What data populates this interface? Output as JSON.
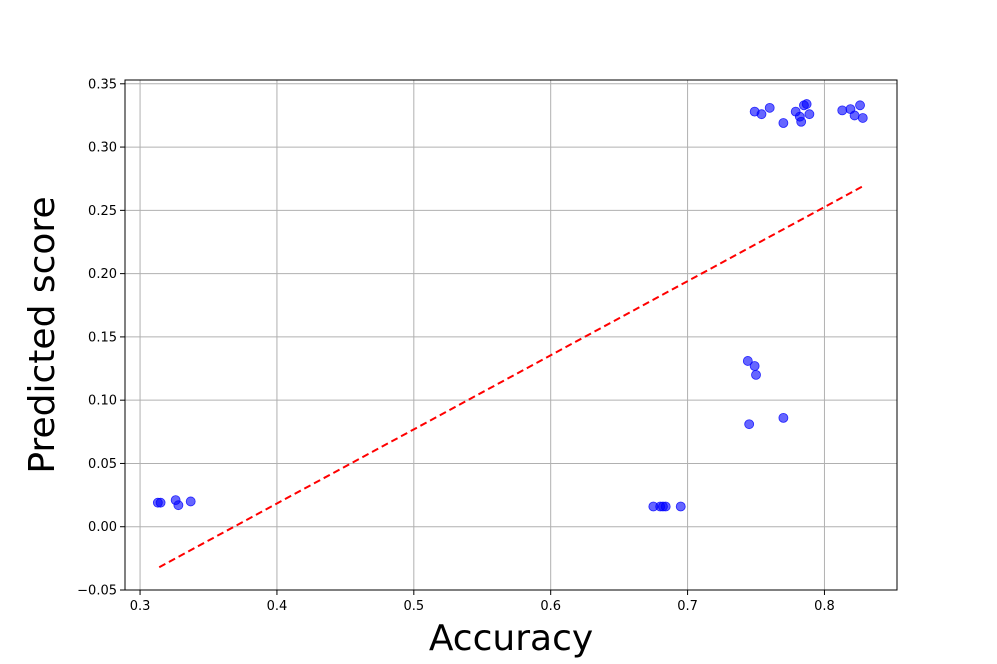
{
  "chart_data": {
    "type": "scatter",
    "title": "",
    "xlabel": "Accuracy",
    "ylabel": "Predicted score",
    "xlim": [
      0.289,
      0.853
    ],
    "ylim": [
      -0.05,
      0.353
    ],
    "xticks": [
      {
        "value": 0.3,
        "label": "0.3"
      },
      {
        "value": 0.4,
        "label": "0.4"
      },
      {
        "value": 0.5,
        "label": "0.5"
      },
      {
        "value": 0.6,
        "label": "0.6"
      },
      {
        "value": 0.7,
        "label": "0.7"
      },
      {
        "value": 0.8,
        "label": "0.8"
      }
    ],
    "yticks": [
      {
        "value": -0.05,
        "label": "−0.05"
      },
      {
        "value": 0.0,
        "label": "0.00"
      },
      {
        "value": 0.05,
        "label": "0.05"
      },
      {
        "value": 0.1,
        "label": "0.10"
      },
      {
        "value": 0.15,
        "label": "0.15"
      },
      {
        "value": 0.2,
        "label": "0.20"
      },
      {
        "value": 0.25,
        "label": "0.25"
      },
      {
        "value": 0.3,
        "label": "0.30"
      },
      {
        "value": 0.35,
        "label": "0.35"
      }
    ],
    "grid": true,
    "series": [
      {
        "type": "scatter",
        "color": "#0000ff",
        "opacity": 0.6,
        "points": [
          {
            "x": 0.313,
            "y": 0.019
          },
          {
            "x": 0.315,
            "y": 0.019
          },
          {
            "x": 0.326,
            "y": 0.021
          },
          {
            "x": 0.328,
            "y": 0.017
          },
          {
            "x": 0.337,
            "y": 0.02
          },
          {
            "x": 0.675,
            "y": 0.016
          },
          {
            "x": 0.68,
            "y": 0.016
          },
          {
            "x": 0.682,
            "y": 0.016
          },
          {
            "x": 0.684,
            "y": 0.016
          },
          {
            "x": 0.695,
            "y": 0.016
          },
          {
            "x": 0.744,
            "y": 0.131
          },
          {
            "x": 0.749,
            "y": 0.127
          },
          {
            "x": 0.75,
            "y": 0.12
          },
          {
            "x": 0.745,
            "y": 0.081
          },
          {
            "x": 0.77,
            "y": 0.086
          },
          {
            "x": 0.749,
            "y": 0.328
          },
          {
            "x": 0.754,
            "y": 0.326
          },
          {
            "x": 0.76,
            "y": 0.331
          },
          {
            "x": 0.77,
            "y": 0.319
          },
          {
            "x": 0.779,
            "y": 0.328
          },
          {
            "x": 0.782,
            "y": 0.324
          },
          {
            "x": 0.783,
            "y": 0.32
          },
          {
            "x": 0.785,
            "y": 0.333
          },
          {
            "x": 0.787,
            "y": 0.334
          },
          {
            "x": 0.789,
            "y": 0.326
          },
          {
            "x": 0.813,
            "y": 0.329
          },
          {
            "x": 0.819,
            "y": 0.33
          },
          {
            "x": 0.822,
            "y": 0.325
          },
          {
            "x": 0.826,
            "y": 0.333
          },
          {
            "x": 0.828,
            "y": 0.323
          }
        ]
      },
      {
        "type": "line",
        "style": "dashed",
        "color": "#ff0000",
        "points": [
          {
            "x": 0.314,
            "y": -0.032
          },
          {
            "x": 0.828,
            "y": 0.269
          }
        ]
      }
    ]
  }
}
